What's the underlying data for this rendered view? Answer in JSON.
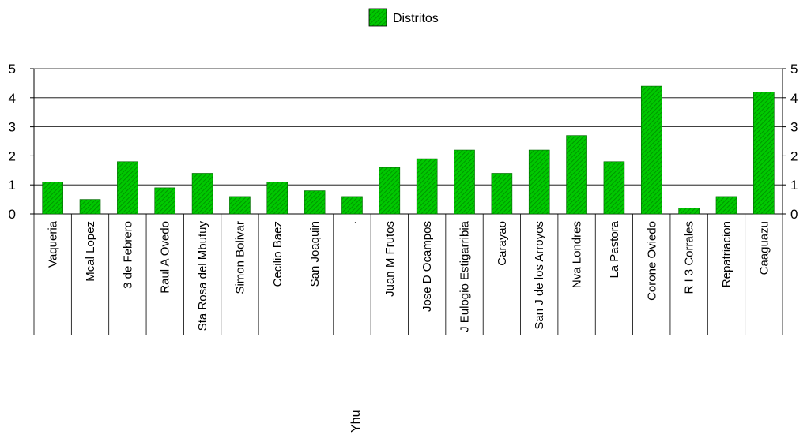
{
  "chart_data": {
    "type": "bar",
    "categories": [
      "Vaqueria",
      "Mcal Lopez",
      "3 de Febrero",
      "Raul A Ovedo",
      "Sta Rosa del Mbutuy",
      "Simon Bolivar",
      "Cecilio Baez",
      "San Joaquin",
      ".",
      "Juan M Frutos",
      "Jose D Ocampos",
      "J Eulogio Estigarribia",
      "Carayao",
      "San J de los Arroyos",
      "Nva Londres",
      "La Pastora",
      "Corone Oviedo",
      "R I 3 Corrales",
      "Repatriacion",
      "Caaguazu"
    ],
    "series": [
      {
        "name": "Distritos",
        "values": [
          1.1,
          0.5,
          1.8,
          0.9,
          1.4,
          0.6,
          1.1,
          0.8,
          0.6,
          1.6,
          1.9,
          2.2,
          1.4,
          2.2,
          2.7,
          1.8,
          4.4,
          0.2,
          0.6,
          4.2
        ]
      }
    ],
    "xlabel": "Yhu",
    "ylabel": "",
    "ylim": [
      0,
      5
    ],
    "yticks": [
      0,
      1,
      2,
      3,
      4,
      5
    ],
    "grid": true,
    "legend_position": "top-center",
    "bar_color": "#00c000",
    "bar_hatch": "diagonal"
  }
}
